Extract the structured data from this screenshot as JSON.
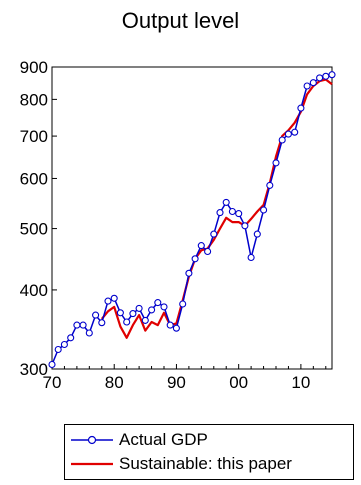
{
  "chart_data": {
    "type": "line",
    "title": "Output level",
    "y_scale": "log",
    "ylim": [
      300,
      900
    ],
    "xlim": [
      1970,
      2015
    ],
    "x_ticks": [
      1970,
      1980,
      1990,
      2000,
      2010
    ],
    "x_tick_labels": [
      "70",
      "80",
      "90",
      "00",
      "10"
    ],
    "y_ticks": [
      300,
      400,
      500,
      600,
      700,
      800,
      900
    ],
    "y_tick_labels": [
      "300",
      "400",
      "500",
      "600",
      "700",
      "800",
      "900"
    ],
    "grid": false,
    "legend_position": "bottom",
    "series": [
      {
        "name": "Actual GDP",
        "color": "#0000cc",
        "marker": "open-circle",
        "x": [
          1970,
          1971,
          1972,
          1973,
          1974,
          1975,
          1976,
          1977,
          1978,
          1979,
          1980,
          1981,
          1982,
          1983,
          1984,
          1985,
          1986,
          1987,
          1988,
          1989,
          1990,
          1991,
          1992,
          1993,
          1994,
          1995,
          1996,
          1997,
          1998,
          1999,
          2000,
          2001,
          2002,
          2003,
          2004,
          2005,
          2006,
          2007,
          2008,
          2009,
          2010,
          2011,
          2012,
          2013,
          2014,
          2015
        ],
        "y": [
          305,
          322,
          328,
          336,
          352,
          352,
          342,
          365,
          355,
          384,
          388,
          368,
          356,
          367,
          374,
          358,
          372,
          382,
          376,
          352,
          348,
          380,
          425,
          448,
          470,
          460,
          490,
          530,
          550,
          532,
          528,
          505,
          450,
          490,
          535,
          585,
          635,
          690,
          705,
          710,
          775,
          840,
          850,
          865,
          870,
          875
        ]
      },
      {
        "name": "Sustainable: this paper",
        "color": "#e00000",
        "marker": "none",
        "x": [
          1978,
          1979,
          1980,
          1981,
          1982,
          1983,
          1984,
          1985,
          1986,
          1987,
          1988,
          1989,
          1990,
          1991,
          1992,
          1993,
          1994,
          1995,
          1996,
          1997,
          1998,
          1999,
          2000,
          2001,
          2002,
          2003,
          2004,
          2005,
          2006,
          2007,
          2008,
          2009,
          2010,
          2011,
          2012,
          2013,
          2014,
          2015
        ],
        "y": [
          360,
          370,
          376,
          350,
          336,
          352,
          365,
          345,
          356,
          352,
          368,
          352,
          354,
          385,
          420,
          448,
          462,
          465,
          480,
          500,
          520,
          512,
          512,
          505,
          518,
          532,
          545,
          590,
          650,
          700,
          715,
          735,
          765,
          815,
          840,
          855,
          860,
          845
        ]
      }
    ]
  }
}
